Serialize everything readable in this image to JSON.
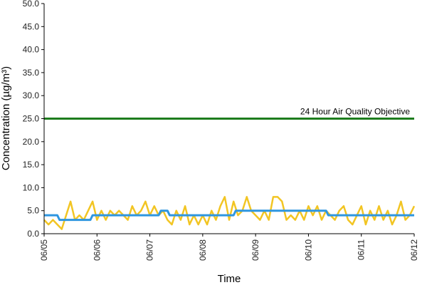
{
  "chart_data": {
    "type": "line",
    "title": "",
    "xlabel": "Time",
    "ylabel": "Concentration (µg/m³)",
    "ylim": [
      0,
      50
    ],
    "y_ticks": [
      "0.0",
      "5.0",
      "10.0",
      "15.0",
      "20.0",
      "25.0",
      "30.0",
      "35.0",
      "40.0",
      "45.0",
      "50.0"
    ],
    "x_range": [
      "06/05",
      "06/12"
    ],
    "x_ticks": [
      "06/05",
      "06/06",
      "06/07",
      "06/08",
      "06/09",
      "06/10",
      "06/11",
      "06/12"
    ],
    "grid": false,
    "legend": "none",
    "objective": {
      "label": "24 Hour Air Quality Objective",
      "value": 25,
      "color": "#1e7d1e"
    },
    "series": [
      {
        "color": "#f2c523",
        "x": [
          "06/05 00:00",
          "06/05 02:00",
          "06/05 04:00",
          "06/05 06:00",
          "06/05 08:00",
          "06/05 10:00",
          "06/05 12:00",
          "06/05 14:00",
          "06/05 16:00",
          "06/05 18:00",
          "06/05 20:00",
          "06/05 22:00",
          "06/06 00:00",
          "06/06 02:00",
          "06/06 04:00",
          "06/06 06:00",
          "06/06 08:00",
          "06/06 10:00",
          "06/06 12:00",
          "06/06 14:00",
          "06/06 16:00",
          "06/06 18:00",
          "06/06 20:00",
          "06/06 22:00",
          "06/07 00:00",
          "06/07 02:00",
          "06/07 04:00",
          "06/07 06:00",
          "06/07 08:00",
          "06/07 10:00",
          "06/07 12:00",
          "06/07 14:00",
          "06/07 16:00",
          "06/07 18:00",
          "06/07 20:00",
          "06/07 22:00",
          "06/08 00:00",
          "06/08 02:00",
          "06/08 04:00",
          "06/08 06:00",
          "06/08 08:00",
          "06/08 10:00",
          "06/08 12:00",
          "06/08 14:00",
          "06/08 16:00",
          "06/08 18:00",
          "06/08 20:00",
          "06/08 22:00",
          "06/09 00:00",
          "06/09 02:00",
          "06/09 04:00",
          "06/09 06:00",
          "06/09 08:00",
          "06/09 10:00",
          "06/09 12:00",
          "06/09 14:00",
          "06/09 16:00",
          "06/09 18:00",
          "06/09 20:00",
          "06/09 22:00",
          "06/10 00:00",
          "06/10 02:00",
          "06/10 04:00",
          "06/10 06:00",
          "06/10 08:00",
          "06/10 10:00",
          "06/10 12:00",
          "06/10 14:00",
          "06/10 16:00",
          "06/10 18:00",
          "06/10 20:00",
          "06/10 22:00",
          "06/11 00:00",
          "06/11 02:00",
          "06/11 04:00",
          "06/11 06:00",
          "06/11 08:00",
          "06/11 10:00",
          "06/11 12:00",
          "06/11 14:00",
          "06/11 16:00",
          "06/11 18:00",
          "06/11 20:00",
          "06/11 22:00",
          "06/12 00:00"
        ],
        "values": [
          3,
          2,
          3,
          2,
          1,
          4,
          7,
          3,
          4,
          3,
          5,
          7,
          3,
          5,
          3,
          5,
          4,
          5,
          4,
          3,
          6,
          4,
          5,
          7,
          4,
          6,
          4,
          5,
          3,
          2,
          5,
          3,
          6,
          2,
          4,
          2,
          4,
          2,
          5,
          3,
          6,
          8,
          3,
          7,
          4,
          5,
          8,
          5,
          4,
          3,
          5,
          3,
          8,
          8,
          7,
          3,
          4,
          3,
          5,
          3,
          6,
          4,
          6,
          3,
          5,
          4,
          3,
          5,
          6,
          3,
          2,
          4,
          6,
          2,
          5,
          3,
          6,
          3,
          5,
          2,
          4,
          7,
          3,
          4,
          6
        ]
      },
      {
        "color": "#2e96e0",
        "x": [
          "06/05 00:00",
          "06/05 06:00",
          "06/05 07:00",
          "06/05 21:00",
          "06/05 22:00",
          "06/07 04:00",
          "06/07 05:00",
          "06/07 08:00",
          "06/07 09:00",
          "06/08 14:00",
          "06/08 15:00",
          "06/10 08:00",
          "06/10 09:00",
          "06/12 00:00"
        ],
        "values": [
          4,
          4,
          3,
          3,
          4,
          4,
          5,
          5,
          4,
          4,
          5,
          5,
          4,
          4
        ]
      }
    ]
  }
}
